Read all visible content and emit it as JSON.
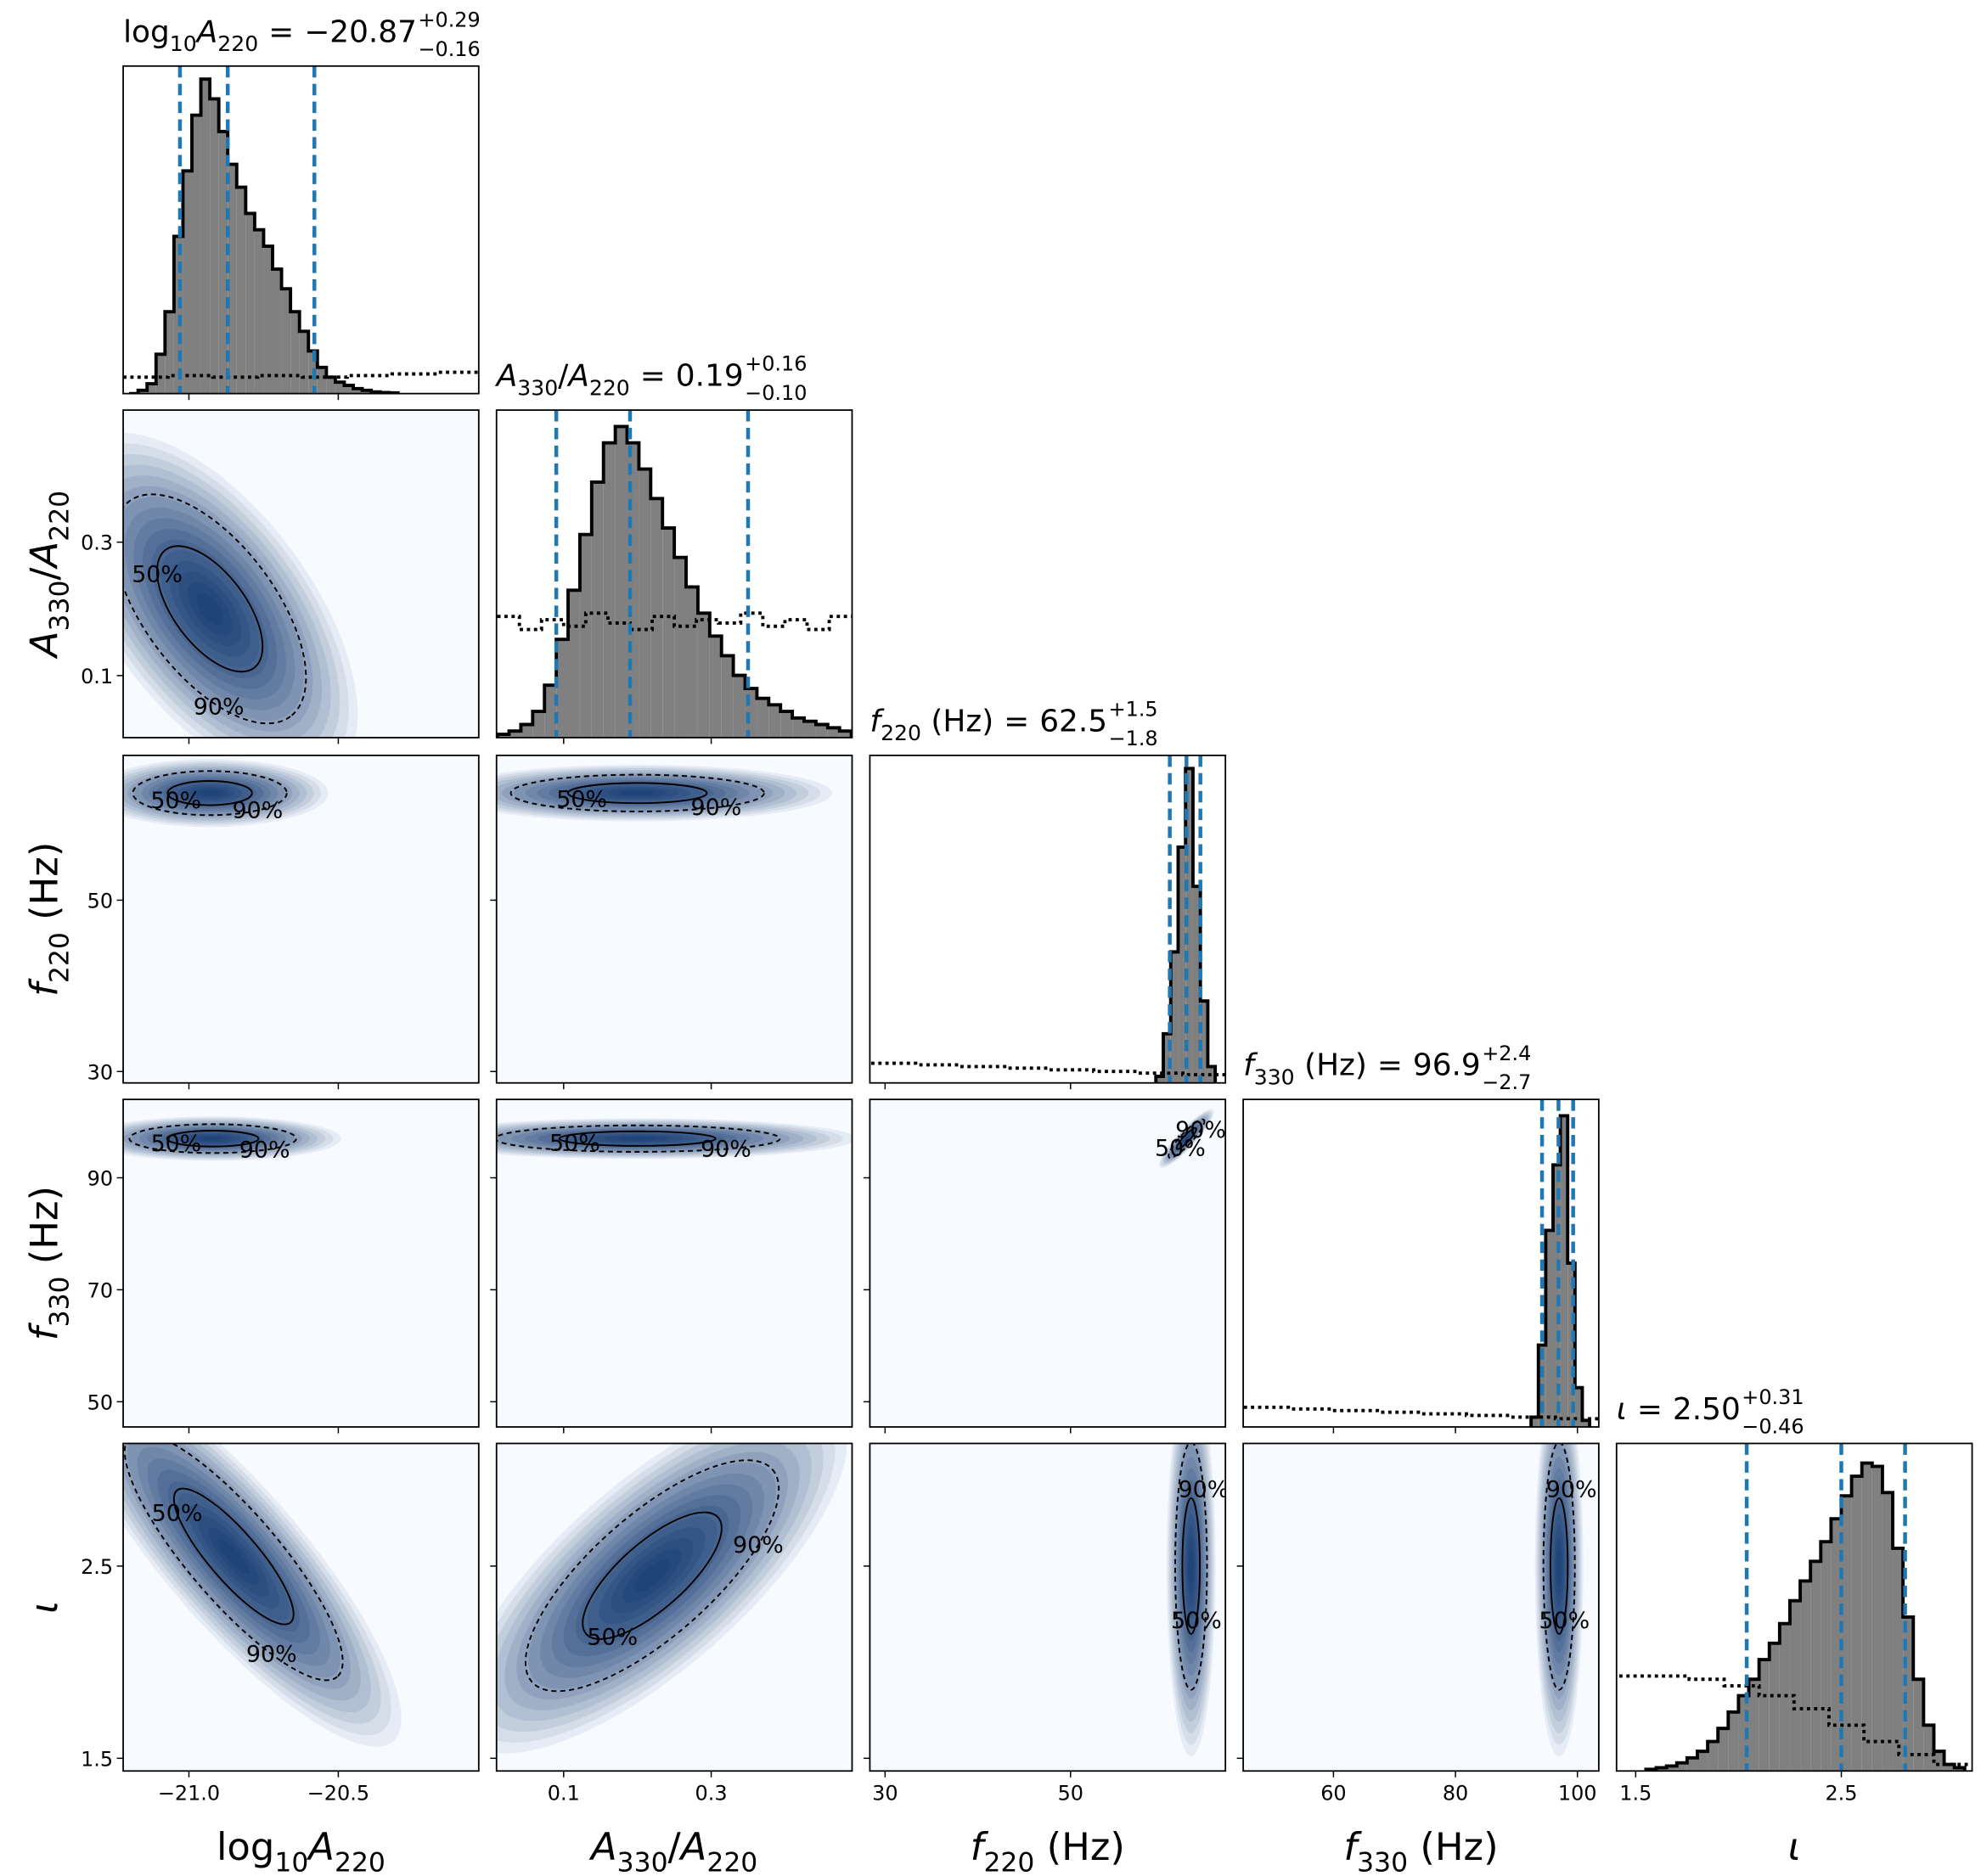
{
  "chart_data": {
    "type": "corner",
    "equals": "=",
    "hist_ylim": [
      0,
      100
    ],
    "hist_color": "#808080",
    "quantile_color": "#1f77b4",
    "density_color": "#08306b",
    "levels": [
      {
        "value": 50,
        "label": "50%",
        "dashed": false
      },
      {
        "value": 90,
        "label": "90%",
        "dashed": true
      }
    ],
    "parameters": [
      {
        "label": [
          {
            "t": "log"
          },
          {
            "t": "10",
            "sub": true
          },
          {
            "t": "A",
            "italic": true
          },
          {
            "t": "220",
            "sub": true
          }
        ],
        "xlim": [
          -21.22,
          -20.03
        ],
        "xticks": [
          {
            "value": -21,
            "label": "−21.0"
          },
          {
            "value": -20.5,
            "label": "−20.5"
          }
        ],
        "median": -20.87,
        "err_plus": 0.29,
        "err_minus": -0.16,
        "value_labels": {
          "median": "−20.87",
          "err_plus": "+0.29",
          "err_minus": "−0.16"
        },
        "hist": {
          "bins": [
            -21.2,
            -21.17,
            -21.14,
            -21.11,
            -21.08,
            -21.05,
            -21.02,
            -20.99,
            -20.96,
            -20.93,
            -20.9,
            -20.87,
            -20.84,
            -20.81,
            -20.78,
            -20.75,
            -20.72,
            -20.69,
            -20.66,
            -20.63,
            -20.6,
            -20.57,
            -20.54,
            -20.51,
            -20.48,
            -20.45,
            -20.42,
            -20.39,
            -20.36,
            -20.33,
            -20.3
          ],
          "counts": [
            0,
            1,
            3,
            12,
            25,
            48,
            68,
            85,
            96,
            90,
            80,
            70,
            63,
            55,
            50,
            45,
            38,
            32,
            25,
            19,
            13,
            8,
            5,
            3.5,
            2.5,
            1.5,
            1,
            0.5,
            0.3,
            0.2
          ]
        },
        "prior": {
          "bins": [
            -21.22,
            -21.07,
            -20.92,
            -20.77,
            -20.62,
            -20.47,
            -20.32,
            -20.17,
            -20.03
          ],
          "counts": [
            5,
            5.5,
            5,
            5.5,
            5,
            5.5,
            6,
            6.5
          ]
        }
      },
      {
        "label": [
          {
            "t": "A",
            "italic": true
          },
          {
            "t": "330",
            "sub": true
          },
          {
            "t": "/"
          },
          {
            "t": "A",
            "italic": true
          },
          {
            "t": "220",
            "sub": true
          }
        ],
        "xlim": [
          0.009,
          0.491
        ],
        "ylim": [
          0.007,
          0.498
        ],
        "xticks": [
          0.1,
          0.3
        ],
        "yticks": [
          0.1,
          0.3
        ],
        "median": 0.19,
        "err_plus": 0.16,
        "err_minus": -0.1,
        "value_labels": {
          "median": "0.19",
          "err_plus": "+0.16",
          "err_minus": "−0.10"
        },
        "hist": {
          "bins": [
            0.01,
            0.026,
            0.042,
            0.058,
            0.074,
            0.09,
            0.106,
            0.122,
            0.138,
            0.154,
            0.17,
            0.186,
            0.202,
            0.218,
            0.234,
            0.25,
            0.266,
            0.282,
            0.298,
            0.314,
            0.33,
            0.346,
            0.362,
            0.378,
            0.394,
            0.41,
            0.426,
            0.442,
            0.458,
            0.474,
            0.49
          ],
          "counts": [
            1,
            2,
            4,
            8,
            16,
            30,
            45,
            62,
            78,
            90,
            95,
            90,
            82,
            73,
            64,
            55,
            46,
            38,
            31,
            25,
            19,
            15,
            12,
            10,
            8,
            6,
            5,
            4,
            3,
            2
          ]
        },
        "prior": {
          "bins": [
            0.01,
            0.04,
            0.07,
            0.1,
            0.13,
            0.16,
            0.19,
            0.22,
            0.25,
            0.28,
            0.31,
            0.34,
            0.37,
            0.4,
            0.43,
            0.46,
            0.49
          ],
          "counts": [
            37,
            33,
            36,
            34,
            38,
            35,
            33,
            37,
            34,
            36,
            35,
            38,
            34,
            36,
            33,
            37
          ]
        }
      },
      {
        "label": [
          {
            "t": "f",
            "italic": true
          },
          {
            "t": "220",
            "sub": true
          },
          {
            "t": " (Hz)"
          }
        ],
        "xlim": [
          28.36,
          66.7
        ],
        "ylim": [
          28.67,
          66.9
        ],
        "xticks": [
          30,
          50
        ],
        "yticks": [
          30,
          50
        ],
        "median": 62.5,
        "err_plus": 1.5,
        "err_minus": -1.8,
        "value_labels": {
          "median": "62.5",
          "err_plus": "+1.5",
          "err_minus": "−1.8"
        },
        "hist": {
          "bins": [
            59.2,
            60,
            60.8,
            61.6,
            62.4,
            63.2,
            64,
            64.8,
            65.6
          ],
          "counts": [
            2,
            15,
            40,
            72,
            96,
            60,
            25,
            5
          ]
        },
        "prior": {
          "bins": [
            28.5,
            33.3,
            38.1,
            42.9,
            47.7,
            52.5,
            57.3,
            62.1,
            66.8
          ],
          "counts": [
            6,
            5.5,
            5,
            4.5,
            4,
            3.5,
            3,
            2.5
          ]
        }
      },
      {
        "label": [
          {
            "t": "f",
            "italic": true
          },
          {
            "t": "330",
            "sub": true
          },
          {
            "t": " (Hz)"
          }
        ],
        "xlim": [
          45.2,
          103.5
        ],
        "ylim": [
          45.5,
          104
        ],
        "xticks": [
          60,
          80,
          100
        ],
        "yticks": [
          50,
          70,
          90
        ],
        "median": 96.9,
        "err_plus": 2.4,
        "err_minus": -2.7,
        "value_labels": {
          "median": "96.9",
          "err_plus": "+2.4",
          "err_minus": "−2.7"
        },
        "hist": {
          "bins": [
            92.4,
            93.6,
            94.8,
            96,
            97.2,
            98.4,
            99.6,
            100.8,
            102
          ],
          "counts": [
            3,
            25,
            60,
            80,
            95,
            50,
            12,
            2
          ]
        },
        "prior": {
          "bins": [
            45.3,
            52.6,
            59.9,
            67.2,
            74.5,
            81.8,
            89.1,
            96.4,
            103.7
          ],
          "counts": [
            6,
            5.5,
            5,
            4.5,
            4,
            3.5,
            3,
            2.5
          ]
        }
      },
      {
        "label": [
          {
            "t": "ι",
            "italic": true
          }
        ],
        "xlim": [
          1.407,
          3.136
        ],
        "ylim": [
          1.434,
          3.138
        ],
        "xticks": [
          1.5,
          2.5
        ],
        "yticks": [
          1.5,
          2.5
        ],
        "median": 2.5,
        "err_plus": 0.31,
        "err_minus": -0.46,
        "value_labels": {
          "median": "2.50",
          "err_plus": "+0.31",
          "err_minus": "−0.46"
        },
        "hist": {
          "bins": [
            1.55,
            1.6,
            1.65,
            1.7,
            1.75,
            1.8,
            1.85,
            1.9,
            1.95,
            2,
            2.05,
            2.1,
            2.15,
            2.2,
            2.25,
            2.3,
            2.35,
            2.4,
            2.45,
            2.5,
            2.55,
            2.6,
            2.65,
            2.7,
            2.75,
            2.8,
            2.85,
            2.9,
            2.95,
            3,
            3.05,
            3.1
          ],
          "counts": [
            0.5,
            1,
            1.5,
            2.5,
            4,
            6,
            9,
            13,
            18,
            23,
            28,
            34,
            39,
            45,
            52,
            58,
            64,
            70,
            77,
            84,
            90,
            94,
            93,
            85,
            68,
            47,
            28,
            14,
            6,
            2,
            1
          ]
        },
        "prior": {
          "bins": [
            1.42,
            1.59,
            1.76,
            1.93,
            2.1,
            2.27,
            2.44,
            2.61,
            2.78,
            2.95,
            3.12
          ],
          "counts": [
            29,
            29,
            28,
            26,
            23,
            19,
            14,
            9,
            5,
            2
          ]
        }
      }
    ],
    "pairs": [
      {
        "x_param": 0,
        "y_param": 1,
        "center": [
          -20.93,
          0.2
        ],
        "sigma": [
          0.15,
          0.08
        ],
        "rho": -0.6
      },
      {
        "x_param": 0,
        "y_param": 2,
        "center": [
          -20.93,
          62.5
        ],
        "sigma": [
          0.12,
          1.2
        ],
        "rho": 0
      },
      {
        "x_param": 1,
        "y_param": 2,
        "center": [
          0.2,
          62.5
        ],
        "sigma": [
          0.08,
          1.0
        ],
        "rho": 0
      },
      {
        "x_param": 0,
        "y_param": 3,
        "center": [
          -20.92,
          97
        ],
        "sigma": [
          0.13,
          1.2
        ],
        "rho": 0
      },
      {
        "x_param": 1,
        "y_param": 3,
        "center": [
          0.2,
          97
        ],
        "sigma": [
          0.09,
          1.1
        ],
        "rho": 0
      },
      {
        "x_param": 2,
        "y_param": 3,
        "center": [
          62.5,
          97
        ],
        "sigma": [
          0.9,
          1.6
        ],
        "rho": 0.9
      },
      {
        "x_param": 0,
        "y_param": 4,
        "center": [
          -20.85,
          2.55
        ],
        "sigma": [
          0.17,
          0.3
        ],
        "rho": -0.85
      },
      {
        "x_param": 1,
        "y_param": 4,
        "center": [
          0.22,
          2.45
        ],
        "sigma": [
          0.08,
          0.28
        ],
        "rho": 0.75
      },
      {
        "x_param": 2,
        "y_param": 4,
        "center": [
          63,
          2.5
        ],
        "sigma": [
          0.8,
          0.3
        ],
        "rho": 0
      },
      {
        "x_param": 3,
        "y_param": 4,
        "center": [
          97,
          2.5
        ],
        "sigma": [
          1.2,
          0.3
        ],
        "rho": 0
      }
    ]
  }
}
